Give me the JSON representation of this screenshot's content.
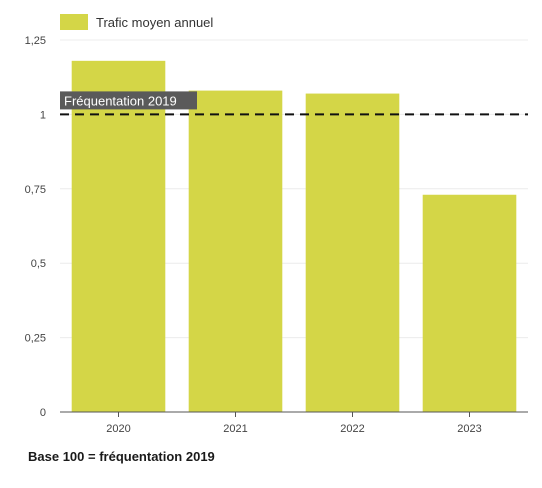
{
  "chart_data": {
    "type": "bar",
    "categories": [
      "2020",
      "2021",
      "2022",
      "2023"
    ],
    "series": [
      {
        "name": "Trafic moyen annuel",
        "values": [
          1.18,
          1.08,
          1.07,
          0.73
        ],
        "color": "#d4d647"
      }
    ],
    "ylim": [
      0,
      1.25
    ],
    "yticks": [
      0,
      0.25,
      0.5,
      0.75,
      1,
      1.25
    ],
    "ytick_labels": [
      "0",
      "0,25",
      "0,5",
      "0,75",
      "1",
      "1,25"
    ],
    "grid": true,
    "legend": "top-left",
    "reference_line": {
      "value": 1,
      "label": "Fréquentation 2019",
      "style": "dashed",
      "color": "#111111",
      "label_background": "#5a5a5a"
    }
  },
  "footnote": "Base 100 = fréquentation 2019"
}
